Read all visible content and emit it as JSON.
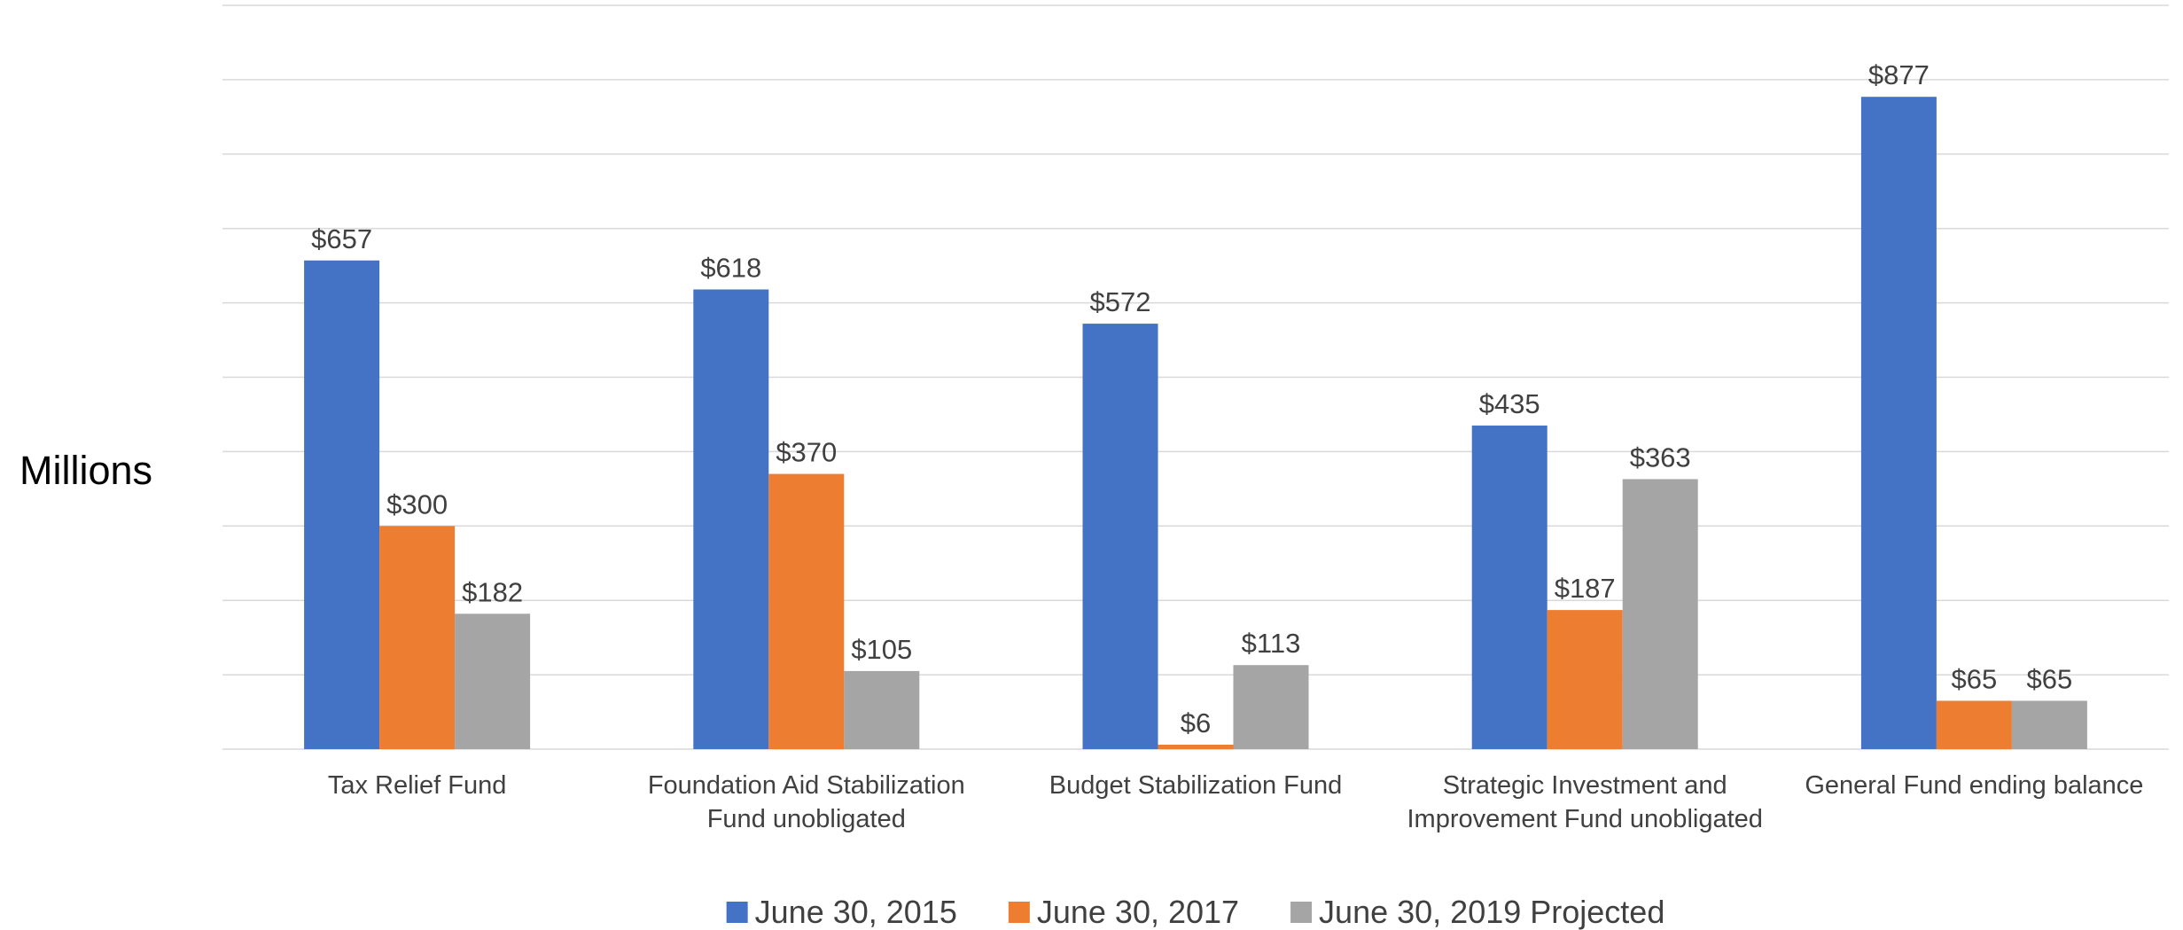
{
  "chart_data": {
    "type": "bar",
    "y_axis_label": "Millions",
    "categories": [
      "Tax Relief Fund",
      "Foundation Aid Stabilization Fund unobligated",
      "Budget Stabilization Fund",
      "Strategic Investment and Improvement Fund unobligated",
      "General Fund ending balance"
    ],
    "series": [
      {
        "name": "June 30, 2015",
        "color": "#4472c4",
        "values": [
          657,
          618,
          572,
          435,
          877
        ],
        "value_labels": [
          "$657",
          "$618",
          "$572",
          "$435",
          "$877"
        ]
      },
      {
        "name": "June 30, 2017",
        "color": "#ed7d31",
        "values": [
          300,
          370,
          6,
          187,
          65
        ],
        "value_labels": [
          "$300",
          "$370",
          "$6",
          "$187",
          "$65"
        ]
      },
      {
        "name": "June 30, 2019 Projected",
        "color": "#a5a5a5",
        "values": [
          182,
          105,
          113,
          363,
          65
        ],
        "value_labels": [
          "$182",
          "$105",
          "$113",
          "$363",
          "$65"
        ]
      }
    ],
    "ylim": [
      0,
      1000
    ],
    "yticks": [
      0,
      100,
      200,
      300,
      400,
      500,
      600,
      700,
      800,
      900,
      1000
    ],
    "grid": true,
    "legend": "bottom"
  }
}
